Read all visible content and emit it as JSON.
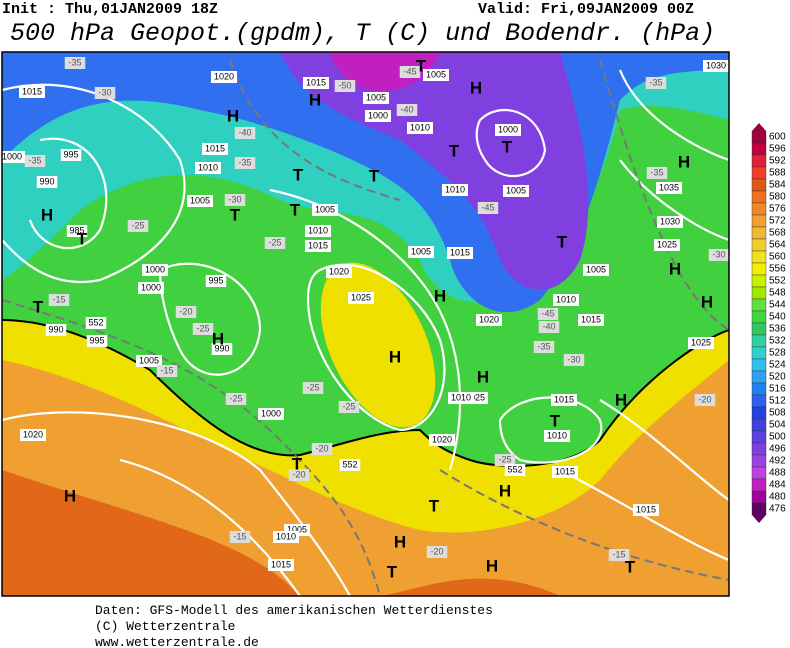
{
  "header": {
    "init": "Init : Thu,01JAN2009 18Z",
    "valid": "Valid: Fri,09JAN2009 00Z",
    "title": "500 hPa Geopot.(gpdm), T (C) und Bodendr. (hPa)"
  },
  "colorbar": {
    "levels": [
      600,
      596,
      592,
      588,
      584,
      580,
      576,
      572,
      568,
      564,
      560,
      556,
      552,
      548,
      544,
      540,
      536,
      532,
      528,
      524,
      520,
      516,
      512,
      508,
      504,
      500,
      496,
      492,
      488,
      484,
      480,
      476
    ],
    "colors": [
      "#a0003c",
      "#c0003c",
      "#e0203c",
      "#f04028",
      "#e05818",
      "#f07020",
      "#f08828",
      "#f0a030",
      "#f0b830",
      "#f0d030",
      "#f0e020",
      "#f0f000",
      "#c8f000",
      "#a0e800",
      "#60e040",
      "#40d840",
      "#30c860",
      "#30d0a0",
      "#30d0d0",
      "#30c0f0",
      "#30a0f0",
      "#2080f0",
      "#3060f0",
      "#2040e0",
      "#4040e0",
      "#6040e0",
      "#8040e0",
      "#a040e0",
      "#c040e0",
      "#c020c0",
      "#a000a0",
      "#600060"
    ]
  },
  "map_labels": [
    "1015",
    "-35",
    "1020",
    "1015",
    "-50",
    "1005",
    "1000",
    "-40",
    "-45",
    "1005",
    "1010",
    "1000",
    "1005",
    "-35",
    "1030",
    "-30",
    "995",
    "1000",
    "-35",
    "990",
    "985",
    "1015",
    "1010",
    "-35",
    "-40",
    "1005",
    "-30",
    "-25",
    "1005",
    "1010",
    "1015",
    "-25",
    "1020",
    "1025",
    "995",
    "990",
    "-20",
    "-25",
    "1000",
    "1000",
    "-15",
    "990",
    "995",
    "1005",
    "-15",
    "1000",
    "-25",
    "-25",
    "-25",
    "1020",
    "1025",
    "1010",
    "1020",
    "1015",
    "-40",
    "-45",
    "-35",
    "-30",
    "1010",
    "1005",
    "1005",
    "1015",
    "1010",
    "-45",
    "1030",
    "1025",
    "-30",
    "1035",
    "-35",
    "1025",
    "-20",
    "1015",
    "1010",
    "1015",
    "-25",
    "-20",
    "-20",
    "-15",
    "1005",
    "1010",
    "1015",
    "-20",
    "1015",
    "-15",
    "1020",
    "552",
    "552",
    "552"
  ],
  "map_letters": [
    "H",
    "H",
    "T",
    "T",
    "T",
    "T",
    "H",
    "T",
    "H",
    "H",
    "T",
    "T",
    "T",
    "T",
    "H",
    "H",
    "H",
    "H",
    "T",
    "H",
    "H",
    "T",
    "H",
    "T",
    "H",
    "H",
    "T",
    "H",
    "H",
    "T",
    "T"
  ],
  "footer": [
    "Daten: GFS-Modell des amerikanischen Wetterdienstes",
    "(C) Wetterzentrale",
    "www.wetterzentrale.de"
  ]
}
